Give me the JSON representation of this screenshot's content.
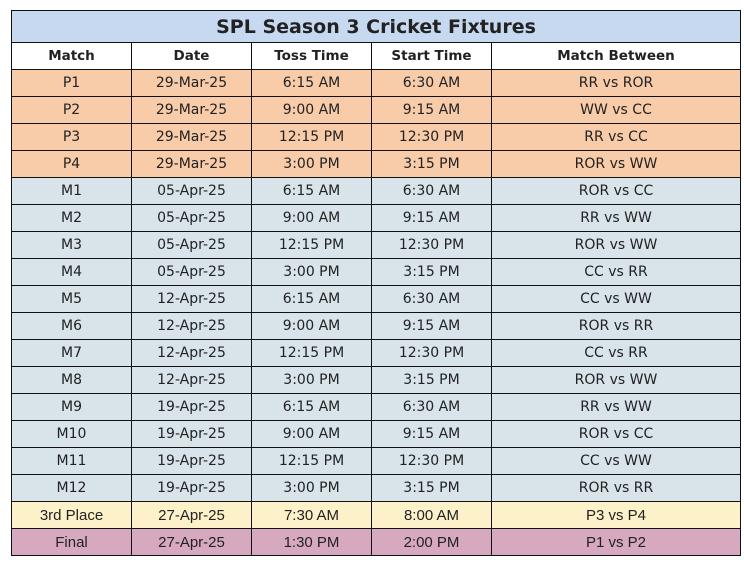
{
  "title": "SPL Season 3 Cricket Fixtures",
  "columns": [
    "Match",
    "Date",
    "Toss Time",
    "Start Time",
    "Match Between"
  ],
  "colors": {
    "title_bg": "#c6d9f0",
    "preliminary_bg": "#f8cba9",
    "league_bg": "#d9e4ea",
    "third_place_bg": "#fdf1c9",
    "final_bg": "#d7a9c0"
  },
  "rows": [
    {
      "match": "P1",
      "date": "29-Mar-25",
      "toss": "6:15 AM",
      "start": "6:30 AM",
      "between": "RR vs ROR",
      "type": "pre"
    },
    {
      "match": "P2",
      "date": "29-Mar-25",
      "toss": "9:00 AM",
      "start": "9:15 AM",
      "between": "WW vs CC",
      "type": "pre"
    },
    {
      "match": "P3",
      "date": "29-Mar-25",
      "toss": "12:15 PM",
      "start": "12:30 PM",
      "between": "RR vs CC",
      "type": "pre"
    },
    {
      "match": "P4",
      "date": "29-Mar-25",
      "toss": "3:00 PM",
      "start": "3:15 PM",
      "between": "ROR vs WW",
      "type": "pre"
    },
    {
      "match": "M1",
      "date": "05-Apr-25",
      "toss": "6:15 AM",
      "start": "6:30 AM",
      "between": "ROR vs CC",
      "type": "league"
    },
    {
      "match": "M2",
      "date": "05-Apr-25",
      "toss": "9:00 AM",
      "start": "9:15 AM",
      "between": "RR vs WW",
      "type": "league"
    },
    {
      "match": "M3",
      "date": "05-Apr-25",
      "toss": "12:15 PM",
      "start": "12:30 PM",
      "between": "ROR vs WW",
      "type": "league"
    },
    {
      "match": "M4",
      "date": "05-Apr-25",
      "toss": "3:00 PM",
      "start": "3:15 PM",
      "between": "CC vs RR",
      "type": "league"
    },
    {
      "match": "M5",
      "date": "12-Apr-25",
      "toss": "6:15 AM",
      "start": "6:30 AM",
      "between": "CC vs WW",
      "type": "league"
    },
    {
      "match": "M6",
      "date": "12-Apr-25",
      "toss": "9:00 AM",
      "start": "9:15 AM",
      "between": "ROR vs RR",
      "type": "league"
    },
    {
      "match": "M7",
      "date": "12-Apr-25",
      "toss": "12:15 PM",
      "start": "12:30 PM",
      "between": "CC vs RR",
      "type": "league"
    },
    {
      "match": "M8",
      "date": "12-Apr-25",
      "toss": "3:00 PM",
      "start": "3:15 PM",
      "between": "ROR vs WW",
      "type": "league"
    },
    {
      "match": "M9",
      "date": "19-Apr-25",
      "toss": "6:15 AM",
      "start": "6:30 AM",
      "between": "RR vs WW",
      "type": "league"
    },
    {
      "match": "M10",
      "date": "19-Apr-25",
      "toss": "9:00 AM",
      "start": "9:15 AM",
      "between": "ROR vs CC",
      "type": "league"
    },
    {
      "match": "M11",
      "date": "19-Apr-25",
      "toss": "12:15 PM",
      "start": "12:30 PM",
      "between": "CC vs WW",
      "type": "league"
    },
    {
      "match": "M12",
      "date": "19-Apr-25",
      "toss": "3:00 PM",
      "start": "3:15 PM",
      "between": "ROR vs RR",
      "type": "league"
    },
    {
      "match": "3rd Place",
      "date": "27-Apr-25",
      "toss": "7:30 AM",
      "start": "8:00 AM",
      "between": "P3 vs P4",
      "type": "third"
    },
    {
      "match": "Final",
      "date": "27-Apr-25",
      "toss": "1:30 PM",
      "start": "2:00 PM",
      "between": "P1 vs P2",
      "type": "final"
    }
  ]
}
